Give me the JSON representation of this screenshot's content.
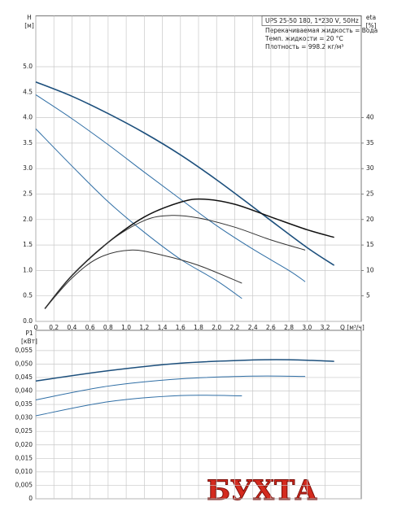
{
  "watermark": "БУХТА",
  "chart_data": [
    {
      "type": "line",
      "ylabel": "H",
      "yunit": "[м]",
      "y2label": "eta",
      "y2unit": "[%]",
      "xlabel": "Q [м³/ч]",
      "annotations": [
        "UPS 25-50 180, 1*230 V, 50Hz",
        "Перекачиваемая жидкость = Вода",
        "Темп. жидкости = 20 °C",
        "Плотность = 998.2 кг/м³"
      ],
      "xlim": [
        0,
        3.6
      ],
      "xticks": [
        0,
        {
          "value": 0.2,
          "label": "0,2"
        },
        {
          "value": 0.4,
          "label": "0,4"
        },
        {
          "value": 0.6,
          "label": "0,6"
        },
        {
          "value": 0.8,
          "label": "0,8"
        },
        {
          "value": 1.0,
          "label": "1,0"
        },
        {
          "value": 1.2,
          "label": "1,2"
        },
        {
          "value": 1.4,
          "label": "1,4"
        },
        {
          "value": 1.6,
          "label": "1,6"
        },
        {
          "value": 1.8,
          "label": "1,8"
        },
        {
          "value": 2.0,
          "label": "2,0"
        },
        {
          "value": 2.2,
          "label": "2,2"
        },
        {
          "value": 2.4,
          "label": "2,4"
        },
        {
          "value": 2.6,
          "label": "2,6"
        },
        {
          "value": 2.8,
          "label": "2,8"
        },
        {
          "value": 3.0,
          "label": "3,0"
        },
        {
          "value": 3.2,
          "label": "3,2"
        }
      ],
      "ylim": [
        0,
        6
      ],
      "yticks": [
        {
          "value": 0,
          "label": "0.0"
        },
        0.5,
        {
          "value": 1,
          "label": "1.0"
        },
        1.5,
        {
          "value": 2,
          "label": "2.0"
        },
        2.5,
        {
          "value": 3,
          "label": "3.0"
        },
        3.5,
        {
          "value": 4,
          "label": "4.0"
        },
        4.5,
        {
          "value": 5,
          "label": "5.0"
        }
      ],
      "y2lim": [
        0,
        60
      ],
      "y2ticks": [
        5,
        10,
        15,
        20,
        25,
        30,
        35,
        40
      ],
      "grid": true,
      "series": [
        {
          "color": "#1c4f7c",
          "width": 1.6,
          "x": [
            0,
            0.4,
            0.8,
            1.2,
            1.6,
            2.0,
            2.4,
            2.6,
            3.0,
            3.3
          ],
          "values": [
            4.7,
            4.42,
            4.08,
            3.7,
            3.27,
            2.78,
            2.25,
            1.98,
            1.45,
            1.1
          ]
        },
        {
          "color": "#2f6ea5",
          "width": 1.0,
          "x": [
            0,
            0.4,
            0.8,
            1.2,
            1.6,
            2.0,
            2.4,
            2.8,
            2.98
          ],
          "values": [
            4.45,
            3.98,
            3.47,
            2.93,
            2.4,
            1.88,
            1.42,
            1.0,
            0.78
          ]
        },
        {
          "color": "#2f6ea5",
          "width": 1.0,
          "x": [
            0,
            0.4,
            0.8,
            1.2,
            1.6,
            2.0,
            2.28
          ],
          "values": [
            3.78,
            3.05,
            2.35,
            1.75,
            1.22,
            0.8,
            0.45
          ]
        },
        {
          "color": "#111111",
          "width": 1.5,
          "axis": "y2",
          "x": [
            0.1,
            0.4,
            0.8,
            1.2,
            1.6,
            1.85,
            2.2,
            2.6,
            3.0,
            3.3
          ],
          "values": [
            2.5,
            9,
            15.5,
            20.5,
            23.4,
            24,
            23,
            20.5,
            18,
            16.5
          ]
        },
        {
          "color": "#333333",
          "width": 1.0,
          "axis": "y2",
          "x": [
            0.1,
            0.4,
            0.8,
            1.2,
            1.5,
            1.8,
            2.2,
            2.6,
            2.98
          ],
          "values": [
            2.5,
            9,
            15.5,
            19.8,
            20.8,
            20.3,
            18.5,
            16,
            14
          ]
        },
        {
          "color": "#333333",
          "width": 1.0,
          "axis": "y2",
          "x": [
            0.1,
            0.4,
            0.7,
            1.05,
            1.4,
            1.8,
            2.28
          ],
          "values": [
            2.5,
            8.5,
            12.5,
            14,
            13,
            11,
            7.5
          ]
        }
      ]
    },
    {
      "type": "line",
      "ylabel": "P1",
      "yunit": "[кВт]",
      "xlim": [
        0,
        3.6
      ],
      "ylim": [
        0,
        0.0625
      ],
      "yticks": [
        0,
        {
          "value": 0.005,
          "label": "0,005"
        },
        {
          "value": 0.01,
          "label": "0,010"
        },
        {
          "value": 0.015,
          "label": "0,015"
        },
        {
          "value": 0.02,
          "label": "0,020"
        },
        {
          "value": 0.025,
          "label": "0,025"
        },
        {
          "value": 0.03,
          "label": "0,030"
        },
        {
          "value": 0.035,
          "label": "0,035"
        },
        {
          "value": 0.04,
          "label": "0,040"
        },
        {
          "value": 0.045,
          "label": "0,045"
        },
        {
          "value": 0.05,
          "label": "0,050"
        },
        {
          "value": 0.055,
          "label": "0,055"
        }
      ],
      "grid": true,
      "series": [
        {
          "color": "#1c4f7c",
          "width": 1.5,
          "x": [
            0,
            0.8,
            1.6,
            2.4,
            2.8,
            3.3
          ],
          "values": [
            0.0437,
            0.0475,
            0.0503,
            0.0515,
            0.0516,
            0.051
          ]
        },
        {
          "color": "#2f6ea5",
          "width": 1.0,
          "x": [
            0,
            0.8,
            1.6,
            2.4,
            2.98
          ],
          "values": [
            0.0367,
            0.0418,
            0.0445,
            0.0455,
            0.0454
          ]
        },
        {
          "color": "#2f6ea5",
          "width": 1.0,
          "x": [
            0,
            0.8,
            1.6,
            2.28
          ],
          "values": [
            0.0308,
            0.036,
            0.0383,
            0.0382
          ]
        }
      ]
    }
  ]
}
